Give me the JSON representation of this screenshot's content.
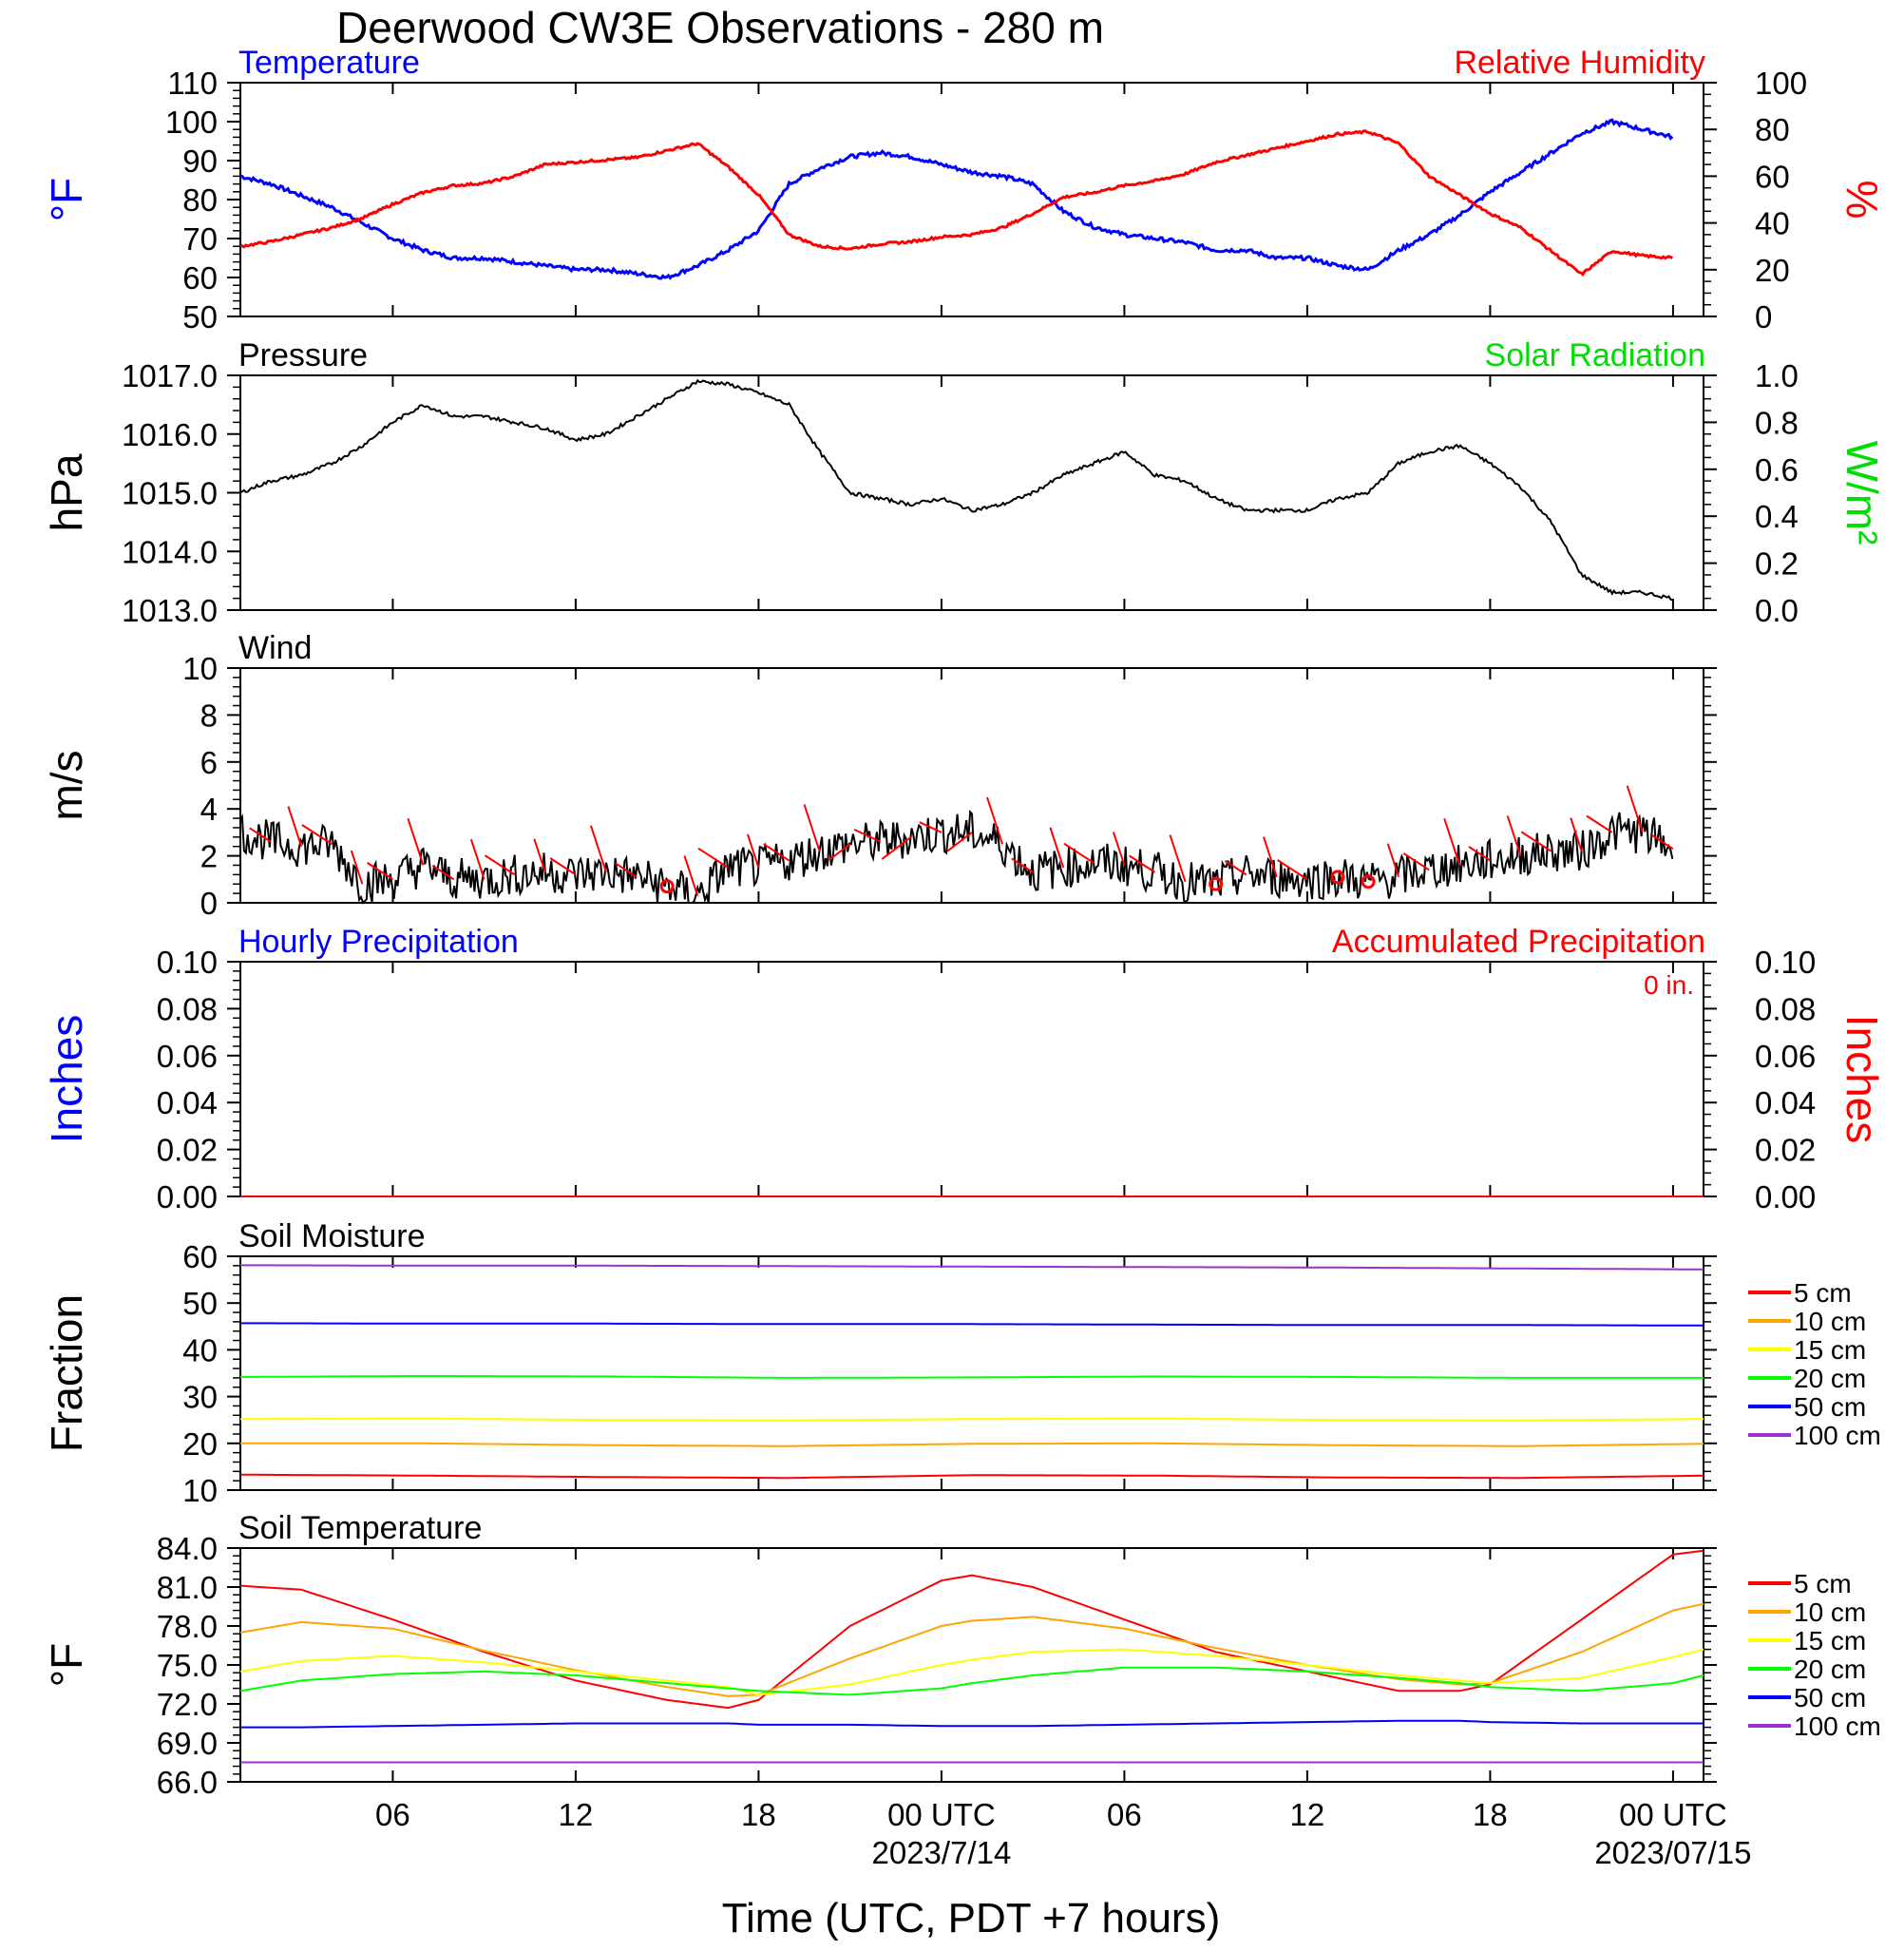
{
  "figure": {
    "title": "Deerwood CW3E Observations - 280 m",
    "xaxis": {
      "title": "Time (UTC, PDT +7 hours)",
      "tick_labels": [
        "06",
        "12",
        "18",
        "00 UTC",
        "06",
        "12",
        "18",
        "00 UTC"
      ],
      "tick_hours": [
        6,
        12,
        18,
        24,
        30,
        36,
        42,
        48
      ],
      "date_labels": [
        {
          "hour": 24,
          "text": "2023/7/14"
        },
        {
          "hour": 48,
          "text": "2023/07/15"
        }
      ],
      "range_hours": [
        1,
        49
      ]
    }
  },
  "chart_data": [
    {
      "type": "line",
      "panel": "temperature-humidity",
      "left_title": "Temperature",
      "right_title": "Relative Humidity",
      "ylabel_left": "°F",
      "ylabel_right": "%",
      "ylim_left": [
        50,
        110
      ],
      "ylim_right": [
        0,
        100
      ],
      "yticks_left": [
        "110",
        "100",
        "90",
        "80",
        "70",
        "60",
        "50"
      ],
      "yticks_right": [
        "100",
        "80",
        "60",
        "40",
        "20",
        "0"
      ],
      "x_hours": [
        1,
        2,
        3,
        4,
        5,
        6,
        7,
        8,
        9,
        10,
        11,
        12,
        13,
        14,
        15,
        16,
        17,
        18,
        19,
        20,
        21,
        22,
        23,
        24,
        25,
        26,
        27,
        28,
        29,
        30,
        31,
        32,
        33,
        34,
        35,
        36,
        37,
        38,
        39,
        40,
        41,
        42,
        43,
        44,
        45,
        46,
        47,
        48
      ],
      "series": [
        {
          "name": "Temperature",
          "color": "#0000ff",
          "axis": "left",
          "values": [
            86,
            84,
            81,
            78,
            74,
            70,
            67,
            65,
            65,
            64,
            63,
            62,
            62,
            61,
            60,
            63,
            67,
            72,
            84,
            88,
            91,
            92,
            91,
            89,
            87,
            86,
            84,
            77,
            73,
            71,
            70,
            69,
            67,
            67,
            65,
            65,
            63,
            62,
            67,
            71,
            76,
            82,
            87,
            92,
            97,
            100,
            98,
            96
          ]
        },
        {
          "name": "Relative Humidity",
          "color": "#ff0000",
          "axis": "right",
          "values": [
            30,
            32,
            35,
            38,
            42,
            48,
            53,
            56,
            57,
            60,
            65,
            66,
            67,
            68,
            71,
            74,
            64,
            52,
            35,
            30,
            29,
            31,
            32,
            34,
            35,
            38,
            44,
            51,
            53,
            56,
            58,
            61,
            66,
            69,
            72,
            75,
            78,
            79,
            74,
            60,
            52,
            44,
            38,
            28,
            18,
            28,
            26,
            25
          ]
        }
      ]
    },
    {
      "type": "line",
      "panel": "pressure",
      "left_title": "Pressure",
      "right_title": "Solar Radiation",
      "ylabel_left": "hPa",
      "ylabel_right": "W/m²",
      "ylim_left": [
        1013,
        1017
      ],
      "ylim_right": [
        0,
        1
      ],
      "yticks_left": [
        "1017.0",
        "1016.0",
        "1015.0",
        "1014.0",
        "1013.0"
      ],
      "yticks_right": [
        "1.0",
        "0.8",
        "0.6",
        "0.4",
        "0.2",
        "0.0"
      ],
      "x_hours": [
        1,
        2,
        3,
        4,
        5,
        6,
        7,
        8,
        9,
        10,
        11,
        12,
        13,
        14,
        15,
        16,
        17,
        18,
        19,
        20,
        21,
        22,
        23,
        24,
        25,
        26,
        27,
        28,
        29,
        30,
        31,
        32,
        33,
        34,
        35,
        36,
        37,
        38,
        39,
        40,
        41,
        42,
        43,
        44,
        45,
        46,
        47,
        48
      ],
      "series": [
        {
          "name": "Pressure",
          "color": "#000000",
          "axis": "left",
          "values": [
            1015.0,
            1015.2,
            1015.3,
            1015.5,
            1015.8,
            1016.2,
            1016.5,
            1016.3,
            1016.3,
            1016.2,
            1016.1,
            1015.9,
            1016.0,
            1016.3,
            1016.6,
            1016.9,
            1016.85,
            1016.7,
            1016.5,
            1015.7,
            1015.0,
            1014.9,
            1014.8,
            1014.9,
            1014.7,
            1014.8,
            1015.0,
            1015.3,
            1015.5,
            1015.7,
            1015.3,
            1015.2,
            1014.9,
            1014.7,
            1014.7,
            1014.7,
            1014.9,
            1015.0,
            1015.5,
            1015.7,
            1015.8,
            1015.5,
            1015.1,
            1014.5,
            1013.6,
            1013.3,
            1013.3,
            1013.2
          ]
        }
      ]
    },
    {
      "type": "line",
      "panel": "wind",
      "left_title": "Wind",
      "ylabel_left": "m/s",
      "ylim_left": [
        0,
        10
      ],
      "yticks_left": [
        "10",
        "8",
        "6",
        "4",
        "2",
        "0"
      ],
      "x_hours": [
        1,
        2,
        3,
        4,
        5,
        6,
        7,
        8,
        9,
        10,
        11,
        12,
        13,
        14,
        15,
        16,
        17,
        18,
        19,
        20,
        21,
        22,
        23,
        24,
        25,
        26,
        27,
        28,
        29,
        30,
        31,
        32,
        33,
        34,
        35,
        36,
        37,
        38,
        39,
        40,
        41,
        42,
        43,
        44,
        45,
        46,
        47,
        48
      ],
      "series": [
        {
          "name": "Wind",
          "color": "#000000",
          "axis": "left",
          "values": [
            3.0,
            2.6,
            2.4,
            2.5,
            0.8,
            1.0,
            1.6,
            1.0,
            1.0,
            1.2,
            1.3,
            1.2,
            1.3,
            1.1,
            0.7,
            0.3,
            1.5,
            1.5,
            1.8,
            2.2,
            2.5,
            2.6,
            2.8,
            3.0,
            3.0,
            2.5,
            1.3,
            1.5,
            1.7,
            1.6,
            1.3,
            0.9,
            0.8,
            1.2,
            1.1,
            1.0,
            1.1,
            0.9,
            1.1,
            1.4,
            1.6,
            1.8,
            2.0,
            2.2,
            2.2,
            3.0,
            3.0,
            2.3
          ]
        }
      ],
      "calm_hours": [
        15,
        33,
        37,
        38
      ],
      "barb_hours": [
        2,
        3,
        4,
        5,
        6,
        7,
        8,
        9,
        10,
        11,
        12,
        13,
        14,
        16,
        17,
        18,
        19,
        20,
        21,
        22,
        23,
        24,
        25,
        26,
        27,
        28,
        29,
        30,
        31,
        32,
        34,
        35,
        36,
        39,
        40,
        41,
        42,
        43,
        44,
        45,
        46,
        47,
        48
      ]
    },
    {
      "type": "line",
      "panel": "precipitation",
      "left_title": "Hourly Precipitation",
      "right_title": "Accumulated Precipitation",
      "ylabel_left": "Inches",
      "ylabel_right": "Inches",
      "annotation": "0 in.",
      "ylim_left": [
        0,
        0.1
      ],
      "ylim_right": [
        0,
        0.1
      ],
      "yticks_left": [
        "0.10",
        "0.08",
        "0.06",
        "0.04",
        "0.02",
        "0.00"
      ],
      "yticks_right": [
        "0.10",
        "0.08",
        "0.06",
        "0.04",
        "0.02",
        "0.00"
      ],
      "x_hours": [
        1,
        49
      ],
      "series": [
        {
          "name": "Accumulated Precipitation",
          "color": "#ff0000",
          "axis": "right",
          "values": [
            0,
            0
          ]
        }
      ]
    },
    {
      "type": "line",
      "panel": "soil-moisture",
      "left_title": "Soil Moisture",
      "ylabel_left": "Fraction",
      "ylim_left": [
        10,
        60
      ],
      "yticks_left": [
        "60",
        "50",
        "40",
        "30",
        "20",
        "10"
      ],
      "x_hours": [
        1,
        7,
        13,
        19,
        25,
        31,
        37,
        43,
        49
      ],
      "series": [
        {
          "name": "5 cm",
          "color": "#ff0000",
          "values": [
            13.3,
            13.1,
            12.8,
            12.6,
            13.2,
            13.1,
            12.7,
            12.6,
            13.1
          ]
        },
        {
          "name": "10 cm",
          "color": "#ffa500",
          "values": [
            20.0,
            20.0,
            19.6,
            19.4,
            19.9,
            20.0,
            19.6,
            19.4,
            19.9
          ]
        },
        {
          "name": "15 cm",
          "color": "#ffff00",
          "values": [
            25.2,
            25.3,
            25.0,
            24.9,
            25.2,
            25.3,
            25.0,
            24.9,
            25.2
          ]
        },
        {
          "name": "20 cm",
          "color": "#00ff00",
          "values": [
            34.2,
            34.4,
            34.3,
            34.0,
            34.1,
            34.3,
            34.2,
            34.0,
            34.0
          ]
        },
        {
          "name": "50 cm",
          "color": "#0000ff",
          "values": [
            45.7,
            45.6,
            45.6,
            45.5,
            45.5,
            45.4,
            45.3,
            45.3,
            45.2
          ]
        },
        {
          "name": "100 cm",
          "color": "#9932cc",
          "values": [
            58.1,
            58.0,
            58.0,
            57.9,
            57.8,
            57.7,
            57.6,
            57.4,
            57.2
          ]
        }
      ]
    },
    {
      "type": "line",
      "panel": "soil-temperature",
      "left_title": "Soil Temperature",
      "ylabel_left": "°F",
      "ylim_left": [
        66,
        84
      ],
      "yticks_left": [
        "84.0",
        "81.0",
        "78.0",
        "75.0",
        "72.0",
        "69.0",
        "66.0"
      ],
      "x_hours": [
        1,
        3,
        6,
        9,
        12,
        15,
        17,
        18,
        21,
        24,
        25,
        27,
        30,
        33,
        36,
        39,
        41,
        42,
        45,
        48,
        49
      ],
      "series": [
        {
          "name": "5 cm",
          "color": "#ff0000",
          "values": [
            81.1,
            80.8,
            78.5,
            76.0,
            73.8,
            72.3,
            71.7,
            72.3,
            78.0,
            81.5,
            81.9,
            81.0,
            78.5,
            76.0,
            74.5,
            73.0,
            73.0,
            73.5,
            78.5,
            83.5,
            83.8
          ]
        },
        {
          "name": "10 cm",
          "color": "#ffa500",
          "values": [
            77.5,
            78.3,
            77.8,
            76.1,
            74.6,
            73.3,
            72.6,
            72.7,
            75.5,
            78.0,
            78.4,
            78.7,
            77.8,
            76.3,
            75.0,
            73.9,
            73.5,
            73.6,
            76.0,
            79.2,
            79.7
          ]
        },
        {
          "name": "15 cm",
          "color": "#ffff00",
          "values": [
            74.5,
            75.3,
            75.7,
            75.2,
            74.5,
            73.8,
            73.3,
            72.7,
            73.5,
            75.0,
            75.4,
            76.0,
            76.2,
            75.7,
            75.0,
            74.2,
            73.8,
            73.6,
            74.0,
            75.6,
            76.2
          ]
        },
        {
          "name": "20 cm",
          "color": "#00ff00",
          "values": [
            73.0,
            73.8,
            74.3,
            74.5,
            74.2,
            73.6,
            73.2,
            73.0,
            72.7,
            73.2,
            73.6,
            74.2,
            74.8,
            74.8,
            74.5,
            74.0,
            73.6,
            73.3,
            73.0,
            73.6,
            74.2
          ]
        },
        {
          "name": "50 cm",
          "color": "#0000ff",
          "values": [
            70.2,
            70.2,
            70.3,
            70.4,
            70.5,
            70.5,
            70.5,
            70.4,
            70.4,
            70.3,
            70.3,
            70.3,
            70.4,
            70.5,
            70.6,
            70.7,
            70.7,
            70.6,
            70.5,
            70.5,
            70.5
          ]
        },
        {
          "name": "100 cm",
          "color": "#9932cc",
          "values": [
            67.5,
            67.5,
            67.5,
            67.5,
            67.5,
            67.5,
            67.5,
            67.5,
            67.5,
            67.5,
            67.5,
            67.5,
            67.5,
            67.5,
            67.5,
            67.5,
            67.5,
            67.5,
            67.5,
            67.5,
            67.5
          ]
        }
      ]
    }
  ]
}
